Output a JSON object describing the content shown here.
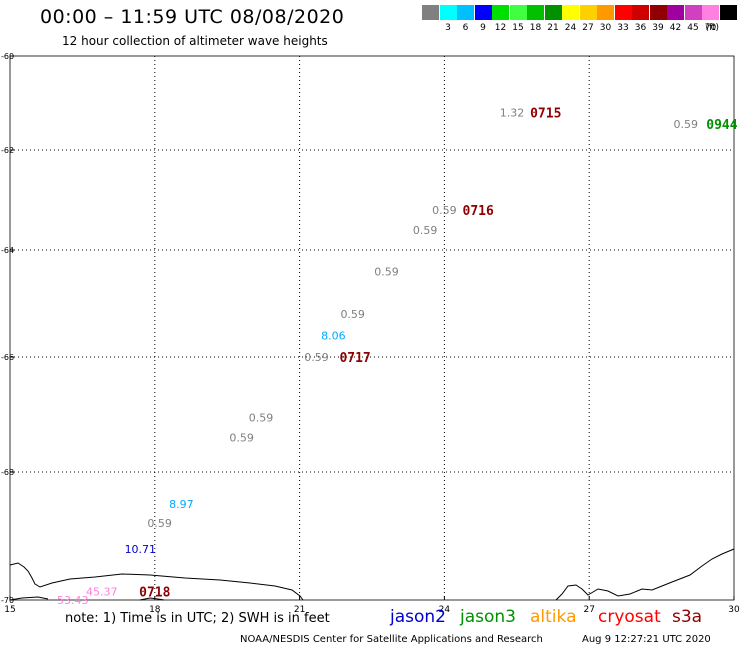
{
  "header": {
    "title": "00:00 – 11:59 UTC 08/08/2020",
    "subtitle": "12 hour collection of altimeter wave heights"
  },
  "color_scale": {
    "unit": "(ft)",
    "swatches": [
      {
        "color": "#808080",
        "label": ""
      },
      {
        "color": "#00ffff",
        "label": "3"
      },
      {
        "color": "#00c0ff",
        "label": "6"
      },
      {
        "color": "#0000ff",
        "label": "9"
      },
      {
        "color": "#00e000",
        "label": "12"
      },
      {
        "color": "#40ff40",
        "label": "15"
      },
      {
        "color": "#00c000",
        "label": "18"
      },
      {
        "color": "#009000",
        "label": "21"
      },
      {
        "color": "#ffff00",
        "label": "24"
      },
      {
        "color": "#ffd000",
        "label": "27"
      },
      {
        "color": "#ff9900",
        "label": "30"
      },
      {
        "color": "#ff0000",
        "label": "33"
      },
      {
        "color": "#d00000",
        "label": "36"
      },
      {
        "color": "#900000",
        "label": "39"
      },
      {
        "color": "#a000a0",
        "label": "42"
      },
      {
        "color": "#d040c0",
        "label": "45"
      },
      {
        "color": "#ff80e0",
        "label": "70"
      },
      {
        "color": "#000000",
        "label": ""
      }
    ]
  },
  "chart_data": {
    "type": "scatter",
    "title": "00:00 – 11:59 UTC 08/08/2020",
    "xlim": [
      15,
      30
    ],
    "ylim": [
      -70,
      -60
    ],
    "x_ticks": [
      "15",
      "18",
      "21",
      "24",
      "27",
      "30"
    ],
    "y_ticks": [
      "-60",
      "-62",
      "-64",
      "-66",
      "-68",
      "-70"
    ],
    "grid": true,
    "wave_heights": [
      {
        "lon": 25.4,
        "lat": -61.2,
        "value": "1.32",
        "color": "#808080"
      },
      {
        "lon": 29.0,
        "lat": -61.45,
        "value": "0.59",
        "color": "#808080"
      },
      {
        "lon": 24.0,
        "lat": -63.2,
        "value": "0.59",
        "color": "#808080"
      },
      {
        "lon": 23.6,
        "lat": -63.6,
        "value": "0.59",
        "color": "#808080"
      },
      {
        "lon": 22.8,
        "lat": -64.4,
        "value": "0.59",
        "color": "#808080"
      },
      {
        "lon": 22.1,
        "lat": -65.2,
        "value": "0.59",
        "color": "#808080"
      },
      {
        "lon": 21.7,
        "lat": -65.6,
        "value": "8.06",
        "color": "#00aaff"
      },
      {
        "lon": 21.35,
        "lat": -66.0,
        "value": "0.59",
        "color": "#808080"
      },
      {
        "lon": 20.2,
        "lat": -67.05,
        "value": "0.59",
        "color": "#808080"
      },
      {
        "lon": 19.8,
        "lat": -67.4,
        "value": "0.59",
        "color": "#808080"
      },
      {
        "lon": 18.55,
        "lat": -68.5,
        "value": "8.97",
        "color": "#00aaff"
      },
      {
        "lon": 18.1,
        "lat": -68.8,
        "value": "0.59",
        "color": "#808080"
      },
      {
        "lon": 17.7,
        "lat": -69.2,
        "value": "10.71",
        "color": "#0000cc"
      },
      {
        "lon": 16.9,
        "lat": -69.87,
        "value": "45.37",
        "color": "#ff80e0"
      },
      {
        "lon": 16.3,
        "lat": -70.25,
        "value": "53.43",
        "color": "#ff80e0"
      }
    ],
    "times": [
      {
        "lon": 26.1,
        "lat": -61.2,
        "label": "0715",
        "color": "#900000"
      },
      {
        "lon": 29.75,
        "lat": -61.45,
        "label": "0944",
        "color": "#009000"
      },
      {
        "lon": 24.7,
        "lat": -63.2,
        "label": "0716",
        "color": "#900000"
      },
      {
        "lon": 22.15,
        "lat": -66.0,
        "label": "0717",
        "color": "#900000"
      },
      {
        "lon": 18.0,
        "lat": -69.87,
        "label": "0718",
        "color": "#900000"
      }
    ]
  },
  "notes": {
    "text": "note:  1) Time is in UTC;  2) SWH is in feet"
  },
  "legend": [
    {
      "label": "jason2",
      "color": "#0000cc"
    },
    {
      "label": "jason3",
      "color": "#009000"
    },
    {
      "label": "altika",
      "color": "#ff9900"
    },
    {
      "label": "cryosat",
      "color": "#ff0000"
    },
    {
      "label": "s3a",
      "color": "#900000"
    }
  ],
  "footer": {
    "credit": "NOAA/NESDIS Center for Satellite Applications and Research",
    "timestamp": "Aug  9 12:27:21 UTC 2020"
  }
}
